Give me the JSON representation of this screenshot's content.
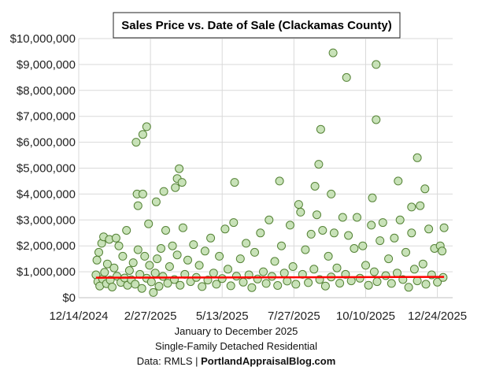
{
  "chart_data": {
    "type": "scatter",
    "title": "Sales Price vs. Date of Sale (Clackamas County)",
    "xlabel_lines": [
      "January to December 2025",
      "Single-Family Detached Residential"
    ],
    "source_prefix": "Data: RMLS | ",
    "source_bold": "PortlandAppraisalBlog.com",
    "xlim": [
      "2024-12-14",
      "2026-01-09"
    ],
    "ylim": [
      0,
      10000000
    ],
    "x_ticks": [
      "12/14/2024",
      "2/27/2025",
      "5/13/2025",
      "7/27/2025",
      "10/10/2025",
      "12/24/2025"
    ],
    "x_tick_dates": [
      "2024-12-14",
      "2025-02-27",
      "2025-05-13",
      "2025-07-27",
      "2025-10-10",
      "2025-12-24"
    ],
    "y_ticks": [
      "$0",
      "$1,000,000",
      "$2,000,000",
      "$3,000,000",
      "$4,000,000",
      "$5,000,000",
      "$6,000,000",
      "$7,000,000",
      "$8,000,000",
      "$9,000,000",
      "$10,000,000"
    ],
    "y_tick_values": [
      0,
      1000000,
      2000000,
      3000000,
      4000000,
      5000000,
      6000000,
      7000000,
      8000000,
      9000000,
      10000000
    ],
    "grid": true,
    "legend": "none",
    "marker_fill": "#c5e0b4",
    "marker_stroke": "#548235",
    "trendline_color": "#ff0000",
    "trendline": [
      [
        "2025-01-01",
        770000
      ],
      [
        "2025-12-31",
        800000
      ]
    ],
    "points": [
      [
        "2025-02-12",
        6000000
      ],
      [
        "2025-02-19",
        6300000
      ],
      [
        "2025-02-23",
        6600000
      ],
      [
        "2025-03-29",
        4980000
      ],
      [
        "2025-03-27",
        4600000
      ],
      [
        "2025-04-01",
        4450000
      ],
      [
        "2025-03-25",
        4250000
      ],
      [
        "2025-03-13",
        4100000
      ],
      [
        "2025-02-13",
        4000000
      ],
      [
        "2025-02-19",
        4000000
      ],
      [
        "2025-02-14",
        3550000
      ],
      [
        "2025-03-05",
        3700000
      ],
      [
        "2025-05-26",
        4450000
      ],
      [
        "2025-07-12",
        4500000
      ],
      [
        "2025-08-18",
        4300000
      ],
      [
        "2025-08-22",
        5150000
      ],
      [
        "2025-08-24",
        6500000
      ],
      [
        "2025-09-06",
        9450000
      ],
      [
        "2025-09-20",
        8500000
      ],
      [
        "2025-09-04",
        4000000
      ],
      [
        "2025-10-21",
        9000000
      ],
      [
        "2025-10-21",
        6870000
      ],
      [
        "2025-10-17",
        3850000
      ],
      [
        "2025-11-13",
        4500000
      ],
      [
        "2025-12-03",
        5400000
      ],
      [
        "2025-12-11",
        4200000
      ],
      [
        "2025-11-27",
        3500000
      ],
      [
        "2025-01-01",
        880000
      ],
      [
        "2025-01-02",
        1450000
      ],
      [
        "2025-01-03",
        620000
      ],
      [
        "2025-01-04",
        1750000
      ],
      [
        "2025-01-05",
        450000
      ],
      [
        "2025-01-07",
        2100000
      ],
      [
        "2025-01-08",
        720000
      ],
      [
        "2025-01-09",
        2350000
      ],
      [
        "2025-01-10",
        980000
      ],
      [
        "2025-01-12",
        540000
      ],
      [
        "2025-01-13",
        1300000
      ],
      [
        "2025-01-15",
        2250000
      ],
      [
        "2025-01-16",
        680000
      ],
      [
        "2025-01-18",
        410000
      ],
      [
        "2025-01-20",
        1150000
      ],
      [
        "2025-01-22",
        2300000
      ],
      [
        "2025-01-23",
        830000
      ],
      [
        "2025-01-25",
        2000000
      ],
      [
        "2025-01-27",
        590000
      ],
      [
        "2025-01-29",
        1600000
      ],
      [
        "2025-01-31",
        760000
      ],
      [
        "2025-02-02",
        2600000
      ],
      [
        "2025-02-03",
        480000
      ],
      [
        "2025-02-05",
        1050000
      ],
      [
        "2025-02-07",
        690000
      ],
      [
        "2025-02-09",
        1350000
      ],
      [
        "2025-02-11",
        520000
      ],
      [
        "2025-02-14",
        1850000
      ],
      [
        "2025-02-16",
        900000
      ],
      [
        "2025-02-18",
        360000
      ],
      [
        "2025-02-21",
        1600000
      ],
      [
        "2025-02-23",
        750000
      ],
      [
        "2025-02-25",
        2850000
      ],
      [
        "2025-02-26",
        1250000
      ],
      [
        "2025-02-28",
        610000
      ],
      [
        "2025-03-02",
        200000
      ],
      [
        "2025-03-04",
        950000
      ],
      [
        "2025-03-06",
        1500000
      ],
      [
        "2025-03-08",
        440000
      ],
      [
        "2025-03-10",
        1900000
      ],
      [
        "2025-03-12",
        820000
      ],
      [
        "2025-03-15",
        2600000
      ],
      [
        "2025-03-17",
        560000
      ],
      [
        "2025-03-19",
        1200000
      ],
      [
        "2025-03-22",
        2000000
      ],
      [
        "2025-03-24",
        700000
      ],
      [
        "2025-03-27",
        1650000
      ],
      [
        "2025-03-30",
        480000
      ],
      [
        "2025-04-02",
        2700000
      ],
      [
        "2025-04-04",
        900000
      ],
      [
        "2025-04-07",
        1450000
      ],
      [
        "2025-04-10",
        620000
      ],
      [
        "2025-04-13",
        2050000
      ],
      [
        "2025-04-16",
        780000
      ],
      [
        "2025-04-19",
        1250000
      ],
      [
        "2025-04-22",
        430000
      ],
      [
        "2025-04-25",
        1800000
      ],
      [
        "2025-04-28",
        680000
      ],
      [
        "2025-05-01",
        2300000
      ],
      [
        "2025-05-04",
        950000
      ],
      [
        "2025-05-07",
        520000
      ],
      [
        "2025-05-10",
        1600000
      ],
      [
        "2025-05-13",
        740000
      ],
      [
        "2025-05-16",
        2650000
      ],
      [
        "2025-05-19",
        1100000
      ],
      [
        "2025-05-22",
        460000
      ],
      [
        "2025-05-25",
        2900000
      ],
      [
        "2025-05-28",
        830000
      ],
      [
        "2025-06-01",
        1500000
      ],
      [
        "2025-06-04",
        600000
      ],
      [
        "2025-06-07",
        2100000
      ],
      [
        "2025-06-10",
        880000
      ],
      [
        "2025-06-13",
        390000
      ],
      [
        "2025-06-16",
        1750000
      ],
      [
        "2025-06-19",
        720000
      ],
      [
        "2025-06-22",
        2500000
      ],
      [
        "2025-06-25",
        1000000
      ],
      [
        "2025-06-28",
        550000
      ],
      [
        "2025-07-01",
        3000000
      ],
      [
        "2025-07-04",
        820000
      ],
      [
        "2025-07-07",
        1400000
      ],
      [
        "2025-07-10",
        470000
      ],
      [
        "2025-07-14",
        2000000
      ],
      [
        "2025-07-17",
        950000
      ],
      [
        "2025-07-20",
        640000
      ],
      [
        "2025-07-23",
        2800000
      ],
      [
        "2025-07-26",
        1200000
      ],
      [
        "2025-07-29",
        520000
      ],
      [
        "2025-08-01",
        3600000
      ],
      [
        "2025-08-03",
        3300000
      ],
      [
        "2025-08-05",
        900000
      ],
      [
        "2025-08-08",
        1850000
      ],
      [
        "2025-08-11",
        580000
      ],
      [
        "2025-08-14",
        2450000
      ],
      [
        "2025-08-17",
        1100000
      ],
      [
        "2025-08-20",
        3200000
      ],
      [
        "2025-08-23",
        700000
      ],
      [
        "2025-08-26",
        2600000
      ],
      [
        "2025-08-29",
        450000
      ],
      [
        "2025-09-01",
        1600000
      ],
      [
        "2025-09-04",
        800000
      ],
      [
        "2025-09-07",
        2500000
      ],
      [
        "2025-09-10",
        1150000
      ],
      [
        "2025-09-13",
        560000
      ],
      [
        "2025-09-16",
        3100000
      ],
      [
        "2025-09-19",
        900000
      ],
      [
        "2025-09-22",
        2400000
      ],
      [
        "2025-09-25",
        650000
      ],
      [
        "2025-09-28",
        1900000
      ],
      [
        "2025-10-01",
        3100000
      ],
      [
        "2025-10-04",
        750000
      ],
      [
        "2025-10-07",
        2000000
      ],
      [
        "2025-10-10",
        1250000
      ],
      [
        "2025-10-13",
        480000
      ],
      [
        "2025-10-16",
        2800000
      ],
      [
        "2025-10-19",
        1000000
      ],
      [
        "2025-10-22",
        620000
      ],
      [
        "2025-10-25",
        2200000
      ],
      [
        "2025-10-28",
        2900000
      ],
      [
        "2025-10-31",
        850000
      ],
      [
        "2025-11-03",
        1500000
      ],
      [
        "2025-11-06",
        550000
      ],
      [
        "2025-11-09",
        2300000
      ],
      [
        "2025-11-12",
        950000
      ],
      [
        "2025-11-15",
        3000000
      ],
      [
        "2025-11-18",
        700000
      ],
      [
        "2025-11-21",
        1750000
      ],
      [
        "2025-11-24",
        400000
      ],
      [
        "2025-11-27",
        2500000
      ],
      [
        "2025-11-30",
        1100000
      ],
      [
        "2025-12-03",
        650000
      ],
      [
        "2025-12-06",
        3550000
      ],
      [
        "2025-12-09",
        1300000
      ],
      [
        "2025-12-12",
        520000
      ],
      [
        "2025-12-15",
        2650000
      ],
      [
        "2025-12-18",
        880000
      ],
      [
        "2025-12-21",
        1900000
      ],
      [
        "2025-12-24",
        600000
      ],
      [
        "2025-12-27",
        2000000
      ],
      [
        "2025-12-29",
        1800000
      ],
      [
        "2025-12-30",
        780000
      ],
      [
        "2025-12-31",
        2700000
      ]
    ]
  }
}
